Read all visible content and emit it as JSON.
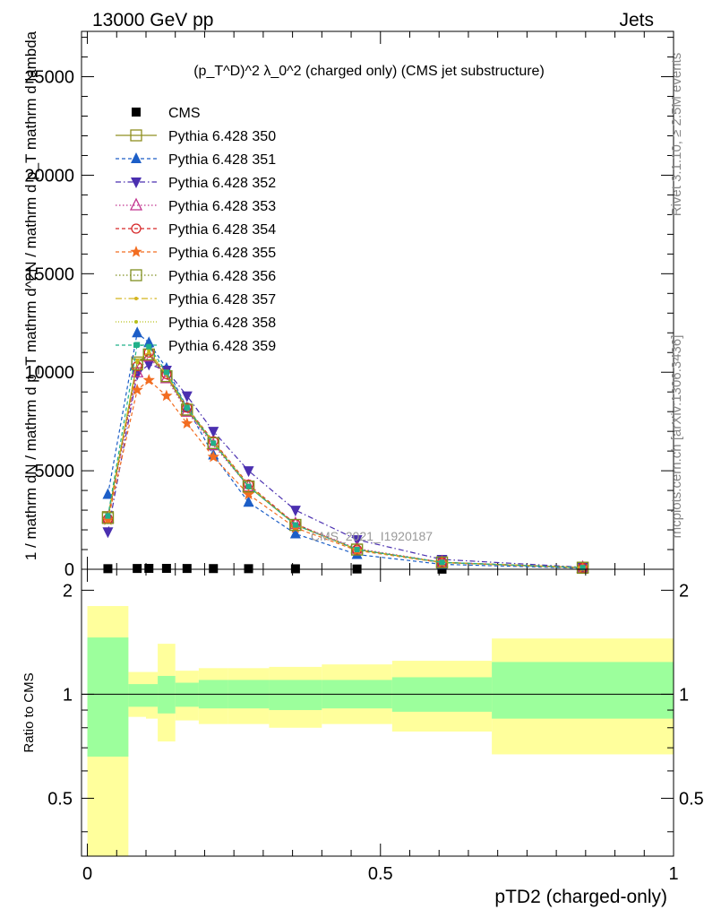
{
  "header": {
    "energy_label": "13000 GeV pp",
    "process_label": "Jets",
    "rivet_label": "Rivet 3.1.10, ≥ 2.5M events",
    "mcplots_label": "mcplots.cern.ch [arXiv:1306.3436]",
    "watermark": "CMS_2021_I1920187"
  },
  "chart_data": [
    {
      "type": "line",
      "title": "(p_T^D)^2 λ_0^2 (charged only) (CMS jet substructure)",
      "ylabel": "1 / mathrm dN / mathrm d p_T  mathrm d^2N / mathrm d p_T mathrm d lambda",
      "ylim": [
        0,
        27300
      ],
      "yticks": [
        0,
        5000,
        10000,
        15000,
        20000,
        25000
      ],
      "ytick_labels": [
        "0",
        "5000",
        "10000",
        "15000",
        "20000",
        "25000"
      ],
      "grid": false,
      "legend_position": "top-left",
      "x": [
        0.035,
        0.085,
        0.105,
        0.135,
        0.17,
        0.215,
        0.275,
        0.355,
        0.46,
        0.605,
        0.845
      ],
      "series": [
        {
          "name": "CMS",
          "color": "#000000",
          "marker": "square-filled",
          "dash": "none",
          "values": [
            30,
            40,
            45,
            45,
            40,
            35,
            30,
            25,
            15,
            5,
            2
          ],
          "error_low": [
            0.65,
            0.85,
            0.85,
            0.72,
            0.85,
            0.82,
            0.8,
            0.78,
            0.8,
            0.77,
            0.66
          ],
          "error_high": [
            1.8,
            1.15,
            1.15,
            1.4,
            1.17,
            1.19,
            1.19,
            1.2,
            1.22,
            1.23,
            1.42
          ]
        },
        {
          "name": "Pythia 6.428 350",
          "color": "#8f8f21",
          "marker": "square-open",
          "dash": "solid",
          "values": [
            2650,
            10500,
            10900,
            9800,
            8100,
            6400,
            4200,
            2250,
            1000,
            350,
            80
          ]
        },
        {
          "name": "Pythia 6.428 351",
          "color": "#1c5ec7",
          "marker": "triangle-up-filled",
          "dash": "4,3",
          "values": [
            3800,
            12000,
            11500,
            10200,
            8200,
            5800,
            3400,
            1800,
            750,
            250,
            50
          ]
        },
        {
          "name": "Pythia 6.428 352",
          "color": "#4a2fb0",
          "marker": "triangle-down-filled",
          "dash": "6,3,1.5,3",
          "values": [
            1900,
            9900,
            10400,
            10100,
            8800,
            7000,
            5000,
            3000,
            1500,
            500,
            100
          ]
        },
        {
          "name": "Pythia 6.428 353",
          "color": "#c2338f",
          "marker": "triangle-up-open",
          "dash": "1.5,2.5",
          "values": [
            2600,
            10000,
            10800,
            9700,
            8000,
            6300,
            4200,
            2300,
            1050,
            360,
            80
          ]
        },
        {
          "name": "Pythia 6.428 354",
          "color": "#d62728",
          "marker": "circle-open",
          "dash": "4,3",
          "values": [
            2550,
            10300,
            11000,
            9900,
            8200,
            6500,
            4300,
            2300,
            1000,
            350,
            80
          ]
        },
        {
          "name": "Pythia 6.428 355",
          "color": "#f26d21",
          "marker": "star",
          "dash": "4,3",
          "values": [
            2500,
            9100,
            9600,
            8800,
            7400,
            5700,
            3800,
            2100,
            950,
            330,
            70
          ]
        },
        {
          "name": "Pythia 6.428 356",
          "color": "#7f8f1f",
          "marker": "square-open",
          "dash": "1.5,2.5",
          "values": [
            2600,
            10400,
            10900,
            9800,
            8100,
            6400,
            4200,
            2250,
            1000,
            350,
            80
          ]
        },
        {
          "name": "Pythia 6.428 357",
          "color": "#d4b51f",
          "marker": "small-dot",
          "dash": "7,3,1.5,3",
          "values": [
            2650,
            10600,
            11000,
            9900,
            8150,
            6450,
            4250,
            2250,
            1000,
            350,
            80
          ]
        },
        {
          "name": "Pythia 6.428 358",
          "color": "#b6c01a",
          "marker": "small-dot",
          "dash": "1,2",
          "values": [
            2650,
            10500,
            11100,
            9950,
            8200,
            6450,
            4250,
            2250,
            1000,
            350,
            80
          ]
        },
        {
          "name": "Pythia 6.428 359",
          "color": "#20b08a",
          "marker": "small-square",
          "dash": "4,3",
          "values": [
            2700,
            11400,
            11300,
            10000,
            8200,
            6400,
            4200,
            2250,
            1000,
            350,
            80
          ]
        }
      ]
    },
    {
      "type": "area",
      "ylabel": "Ratio to CMS",
      "xlabel": "pTD2 (charged-only)",
      "xlim": [
        -0.01,
        1.0
      ],
      "ylim": [
        0.34,
        2.3
      ],
      "log_y": true,
      "xticks": [
        0,
        0.5,
        1
      ],
      "xtick_labels": [
        "0",
        "0.5",
        "1"
      ],
      "yticks": [
        0.5,
        1,
        2
      ],
      "ytick_labels": [
        "0.5",
        "1",
        "2"
      ],
      "bin_edges": [
        0,
        0.07,
        0.1,
        0.12,
        0.15,
        0.19,
        0.24,
        0.31,
        0.4,
        0.52,
        0.69,
        1.0
      ],
      "inner_band": {
        "color": "#9cff9c",
        "low": [
          0.66,
          0.92,
          0.92,
          0.88,
          0.92,
          0.91,
          0.91,
          0.9,
          0.91,
          0.89,
          0.85
        ],
        "high": [
          1.46,
          1.07,
          1.07,
          1.13,
          1.08,
          1.1,
          1.1,
          1.1,
          1.1,
          1.12,
          1.24
        ]
      },
      "outer_band": {
        "color": "#ffff9c",
        "low": [
          0.34,
          0.86,
          0.85,
          0.73,
          0.84,
          0.82,
          0.82,
          0.8,
          0.82,
          0.78,
          0.67
        ],
        "high": [
          1.8,
          1.16,
          1.16,
          1.4,
          1.17,
          1.19,
          1.19,
          1.2,
          1.22,
          1.25,
          1.45
        ]
      },
      "reference_line": 1
    }
  ]
}
